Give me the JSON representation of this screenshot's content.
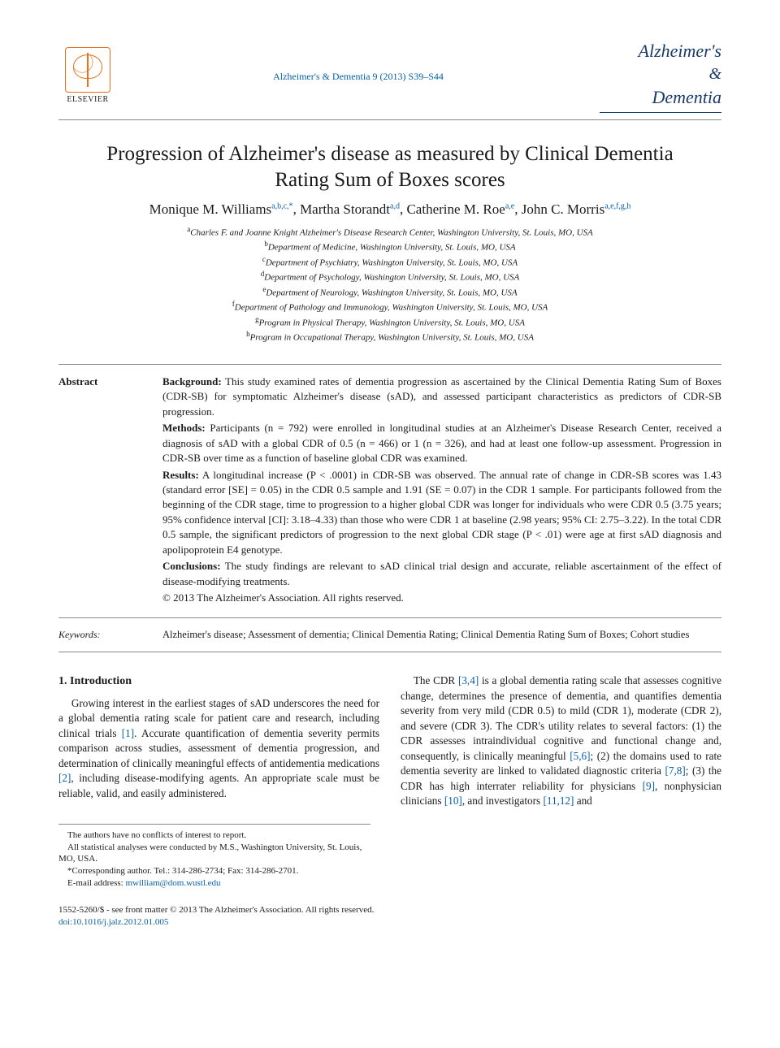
{
  "header": {
    "publisher_label": "ELSEVIER",
    "citation": "Alzheimer's & Dementia 9 (2013) S39–S44",
    "journal_logo": {
      "line1": "Alzheimer's",
      "amp": "&",
      "line2": "Dementia"
    }
  },
  "article": {
    "title": "Progression of Alzheimer's disease as measured by Clinical Dementia Rating Sum of Boxes scores",
    "authors": [
      {
        "name": "Monique M. Williams",
        "sup": "a,b,c,*"
      },
      {
        "name": "Martha Storandt",
        "sup": "a,d"
      },
      {
        "name": "Catherine M. Roe",
        "sup": "a,e"
      },
      {
        "name": "John C. Morris",
        "sup": "a,e,f,g,h"
      }
    ],
    "affiliations": [
      {
        "sup": "a",
        "text": "Charles F. and Joanne Knight Alzheimer's Disease Research Center, Washington University, St. Louis, MO, USA"
      },
      {
        "sup": "b",
        "text": "Department of Medicine, Washington University, St. Louis, MO, USA"
      },
      {
        "sup": "c",
        "text": "Department of Psychiatry, Washington University, St. Louis, MO, USA"
      },
      {
        "sup": "d",
        "text": "Department of Psychology, Washington University, St. Louis, MO, USA"
      },
      {
        "sup": "e",
        "text": "Department of Neurology, Washington University, St. Louis, MO, USA"
      },
      {
        "sup": "f",
        "text": "Department of Pathology and Immunology, Washington University, St. Louis, MO, USA"
      },
      {
        "sup": "g",
        "text": "Program in Physical Therapy, Washington University, St. Louis, MO, USA"
      },
      {
        "sup": "h",
        "text": "Program in Occupational Therapy, Washington University, St. Louis, MO, USA"
      }
    ]
  },
  "abstract": {
    "label": "Abstract",
    "sections": [
      {
        "head": "Background:",
        "body": "This study examined rates of dementia progression as ascertained by the Clinical Dementia Rating Sum of Boxes (CDR-SB) for symptomatic Alzheimer's disease (sAD), and assessed participant characteristics as predictors of CDR-SB progression."
      },
      {
        "head": "Methods:",
        "body": "Participants (n = 792) were enrolled in longitudinal studies at an Alzheimer's Disease Research Center, received a diagnosis of sAD with a global CDR of 0.5 (n = 466) or 1 (n = 326), and had at least one follow-up assessment. Progression in CDR-SB over time as a function of baseline global CDR was examined."
      },
      {
        "head": "Results:",
        "body": "A longitudinal increase (P < .0001) in CDR-SB was observed. The annual rate of change in CDR-SB scores was 1.43 (standard error [SE] = 0.05) in the CDR 0.5 sample and 1.91 (SE = 0.07) in the CDR 1 sample. For participants followed from the beginning of the CDR stage, time to progression to a higher global CDR was longer for individuals who were CDR 0.5 (3.75 years; 95% confidence interval [CI]: 3.18–4.33) than those who were CDR 1 at baseline (2.98 years; 95% CI: 2.75–3.22). In the total CDR 0.5 sample, the significant predictors of progression to the next global CDR stage (P < .01) were age at first sAD diagnosis and apolipoprotein E4 genotype."
      },
      {
        "head": "Conclusions:",
        "body": "The study findings are relevant to sAD clinical trial design and accurate, reliable ascertainment of the effect of disease-modifying treatments."
      }
    ],
    "copyright": "© 2013 The Alzheimer's Association. All rights reserved."
  },
  "keywords": {
    "label": "Keywords:",
    "text": "Alzheimer's disease; Assessment of dementia; Clinical Dementia Rating; Clinical Dementia Rating Sum of Boxes; Cohort studies"
  },
  "intro": {
    "heading": "1. Introduction",
    "p1": "Growing interest in the earliest stages of sAD underscores the need for a global dementia rating scale for patient care and research, including clinical trials ",
    "r1": "[1]",
    "p1b": ". Accurate quantification of dementia severity permits comparison across studies, assessment of dementia progression, and determination of clinically meaningful effects of antidementia medications ",
    "r2": "[2]",
    "p2a": ", including disease-modifying agents. An appropriate scale must be reliable, valid, and easily administered.",
    "p3a": "The CDR ",
    "r34": "[3,4]",
    "p3b": " is a global dementia rating scale that assesses cognitive change, determines the presence of dementia, and quantifies dementia severity from very mild (CDR 0.5) to mild (CDR 1), moderate (CDR 2), and severe (CDR 3). The CDR's utility relates to several factors: (1) the CDR assesses intraindividual cognitive and functional change and, consequently, is clinically meaningful ",
    "r56": "[5,6]",
    "p3c": "; (2) the domains used to rate dementia severity are linked to validated diagnostic criteria ",
    "r78": "[7,8]",
    "p3d": "; (3) the CDR has high interrater reliability for physicians ",
    "r9": "[9]",
    "p3e": ", nonphysician clinicians ",
    "r10": "[10]",
    "p3f": ", and investigators ",
    "r1112": "[11,12]",
    "p3g": " and"
  },
  "footnotes": {
    "f1": "The authors have no conflicts of interest to report.",
    "f2": "All statistical analyses were conducted by M.S., Washington University, St. Louis, MO, USA.",
    "f3": "*Corresponding author. Tel.: 314-286-2734; Fax: 314-286-2701.",
    "f4_label": "E-mail address: ",
    "f4_email": "mwilliam@dom.wustl.edu"
  },
  "footer": {
    "line1": "1552-5260/$ - see front matter © 2013 The Alzheimer's Association. All rights reserved.",
    "doi": "doi:10.1016/j.jalz.2012.01.005"
  },
  "colors": {
    "link": "#0860a8",
    "elsevier_orange": "#e9711c",
    "text": "#1a1a1a"
  }
}
